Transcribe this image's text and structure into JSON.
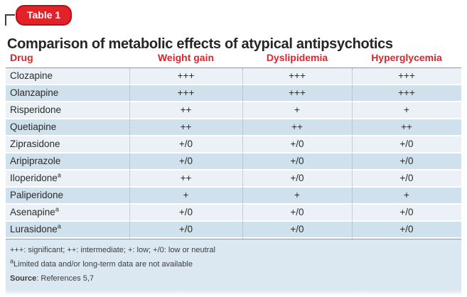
{
  "badge": {
    "label": "Table 1"
  },
  "title": "Comparison of metabolic effects of atypical antipsychotics",
  "table": {
    "columns": [
      "Drug",
      "Weight gain",
      "Dyslipidemia",
      "Hyperglycemia"
    ],
    "rows": [
      {
        "drug": "Clozapine",
        "sup": "",
        "values": [
          "+++",
          "+++",
          "+++"
        ]
      },
      {
        "drug": "Olanzapine",
        "sup": "",
        "values": [
          "+++",
          "+++",
          "+++"
        ]
      },
      {
        "drug": "Risperidone",
        "sup": "",
        "values": [
          "++",
          "+",
          "+"
        ]
      },
      {
        "drug": "Quetiapine",
        "sup": "",
        "values": [
          "++",
          "++",
          "++"
        ]
      },
      {
        "drug": "Ziprasidone",
        "sup": "",
        "values": [
          "+/0",
          "+/0",
          "+/0"
        ]
      },
      {
        "drug": "Aripiprazole",
        "sup": "",
        "values": [
          "+/0",
          "+/0",
          "+/0"
        ]
      },
      {
        "drug": "Iloperidone",
        "sup": "a",
        "values": [
          "++",
          "+/0",
          "+/0"
        ]
      },
      {
        "drug": "Paliperidone",
        "sup": "",
        "values": [
          "+",
          "+",
          "+"
        ]
      },
      {
        "drug": "Asenapine",
        "sup": "a",
        "values": [
          "+/0",
          "+/0",
          "+/0"
        ]
      },
      {
        "drug": "Lurasidone",
        "sup": "a",
        "values": [
          "+/0",
          "+/0",
          "+/0"
        ]
      }
    ]
  },
  "footnotes": {
    "legend": "+++: significant; ++: intermediate; +: low; +/0: low or neutral",
    "limited_sup": "a",
    "limited": "Limited data and/or long-term data are not available",
    "source_label": "Source",
    "source_rest": ": References 5,7"
  },
  "colors": {
    "accent_red": "#e32128",
    "badge_border_red": "#b01218",
    "title_text": "#262626",
    "row_light": "#ebf1f7",
    "row_dark": "#cfe1ec",
    "footnote_panel": "#dbe8f2",
    "rule_gray": "#8b99a5",
    "separator_dotted": "#98aec0"
  }
}
